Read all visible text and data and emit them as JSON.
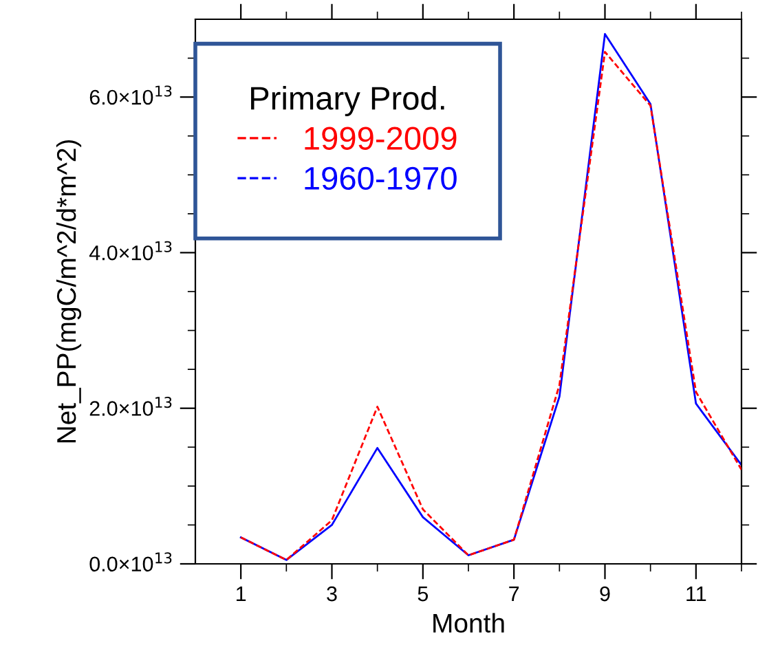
{
  "chart_data": {
    "type": "line",
    "xlabel": "Month",
    "ylabel": "Net_PP(mgC/m^2/d*m^2)",
    "legend_title": "Primary Prod.",
    "legend": "top left",
    "grid": false,
    "marker": "none",
    "x": [
      1,
      2,
      3,
      4,
      5,
      6,
      7,
      8,
      9,
      10,
      11,
      12
    ],
    "xlim": [
      0,
      12
    ],
    "xticks": [
      1,
      {
        "value": 2,
        "label": null
      },
      3,
      {
        "value": 4,
        "label": null
      },
      5,
      {
        "value": 6,
        "label": null
      },
      7,
      {
        "value": 8,
        "label": null
      },
      9,
      {
        "value": 10,
        "label": null
      },
      11,
      {
        "value": 12,
        "label": null
      }
    ],
    "ylim": [
      0,
      70000000000000.0
    ],
    "yticks": [
      {
        "value": 0,
        "label": "0.0×10$^{13}$"
      },
      {
        "value": 5000000000000.0,
        "label": null
      },
      {
        "value": 10000000000000.0,
        "label": null
      },
      {
        "value": 15000000000000.0,
        "label": null
      },
      {
        "value": 20000000000000.0,
        "label": "2.0×10$^{13}$"
      },
      {
        "value": 25000000000000.0,
        "label": null
      },
      {
        "value": 30000000000000.0,
        "label": null
      },
      {
        "value": 35000000000000.0,
        "label": null
      },
      {
        "value": 40000000000000.0,
        "label": "4.0×10$^{13}$"
      },
      {
        "value": 45000000000000.0,
        "label": null
      },
      {
        "value": 50000000000000.0,
        "label": null
      },
      {
        "value": 55000000000000.0,
        "label": null
      },
      {
        "value": 60000000000000.0,
        "label": "6.0×10$^{13}$"
      },
      {
        "value": 65000000000000.0,
        "label": null
      }
    ],
    "series": [
      {
        "name": "1999-2009",
        "color": "#ff0000",
        "line_style": "dashed",
        "values": [
          3400000000000.0,
          500000000000.0,
          5600000000000.0,
          20200000000000.0,
          7000000000000.0,
          1100000000000.0,
          3100000000000.0,
          23000000000000.0,
          65800000000000.0,
          58900000000000.0,
          22100000000000.0,
          12100000000000.0
        ]
      },
      {
        "name": "1960-1970",
        "color": "#0000ff",
        "line_style": "solid",
        "values": [
          3400000000000.0,
          500000000000.0,
          5000000000000.0,
          14900000000000.0,
          6000000000000.0,
          1100000000000.0,
          3100000000000.0,
          21500000000000.0,
          68100000000000.0,
          59100000000000.0,
          20600000000000.0,
          12700000000000.0
        ]
      }
    ]
  }
}
